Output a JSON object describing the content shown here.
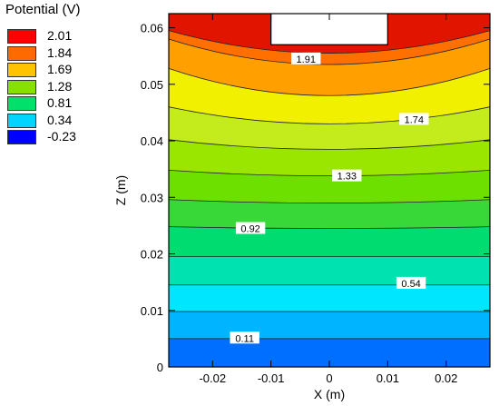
{
  "chart_data": {
    "type": "heatmap",
    "subtype": "filled-contour",
    "xlabel": "X (m)",
    "ylabel": "Z (m)",
    "xlim": [
      -0.0275,
      0.0275
    ],
    "ylim": [
      0,
      0.0625
    ],
    "x_ticks": [
      "-0.02",
      "-0.01",
      "0",
      "0.01",
      "0.02"
    ],
    "y_ticks": [
      "0",
      "0.01",
      "0.02",
      "0.03",
      "0.04",
      "0.05",
      "0.06"
    ],
    "legend": {
      "title": "Potential (V)",
      "position": "top-left",
      "levels": [
        {
          "label": "2.01",
          "color": "#ff0000"
        },
        {
          "label": "1.84",
          "color": "#ff6a00"
        },
        {
          "label": "1.69",
          "color": "#ffc300"
        },
        {
          "label": "1.28",
          "color": "#87e000"
        },
        {
          "label": "0.81",
          "color": "#00e06a"
        },
        {
          "label": "0.34",
          "color": "#00d4ff"
        },
        {
          "label": "-0.23",
          "color": "#0000ff"
        }
      ]
    },
    "electrode": {
      "x": [
        -0.01,
        0.01
      ],
      "z_bottom": 0.057,
      "label": "electrode cutout"
    },
    "contour_labels": [
      {
        "text": "1.91",
        "x": -0.004,
        "z": 0.0545
      },
      {
        "text": "1.74",
        "x": 0.0145,
        "z": 0.0438
      },
      {
        "text": "1.33",
        "x": 0.003,
        "z": 0.0338
      },
      {
        "text": "0.92",
        "x": -0.0135,
        "z": 0.0245
      },
      {
        "text": "0.54",
        "x": 0.014,
        "z": 0.0148
      },
      {
        "text": "0.11",
        "x": -0.0145,
        "z": 0.0051
      }
    ],
    "contour_bands": [
      {
        "z_center": 0.0592,
        "z_edge": 0.0555,
        "color": "#e11400"
      },
      {
        "z_center": 0.0555,
        "z_edge": 0.0595,
        "color": "#ff7000"
      },
      {
        "z_center": 0.0535,
        "z_edge": 0.058,
        "color": "#ffa000"
      },
      {
        "z_center": 0.048,
        "z_edge": 0.0528,
        "color": "#f0f000"
      },
      {
        "z_center": 0.043,
        "z_edge": 0.046,
        "color": "#c4ec1c"
      },
      {
        "z_center": 0.0385,
        "z_edge": 0.0402,
        "color": "#9ae600"
      },
      {
        "z_center": 0.0338,
        "z_edge": 0.0348,
        "color": "#6ee000"
      },
      {
        "z_center": 0.029,
        "z_edge": 0.0296,
        "color": "#38d838"
      },
      {
        "z_center": 0.0245,
        "z_edge": 0.0248,
        "color": "#00dc70"
      },
      {
        "z_center": 0.0195,
        "z_edge": 0.0195,
        "color": "#00e2b0"
      },
      {
        "z_center": 0.0145,
        "z_edge": 0.0145,
        "color": "#00e6ff"
      },
      {
        "z_center": 0.0098,
        "z_edge": 0.0098,
        "color": "#00b4ff"
      },
      {
        "z_center": 0.005,
        "z_edge": 0.005,
        "color": "#006eff"
      },
      {
        "z_center": 0.0,
        "z_edge": 0.0,
        "color": "#0020ff"
      }
    ]
  }
}
